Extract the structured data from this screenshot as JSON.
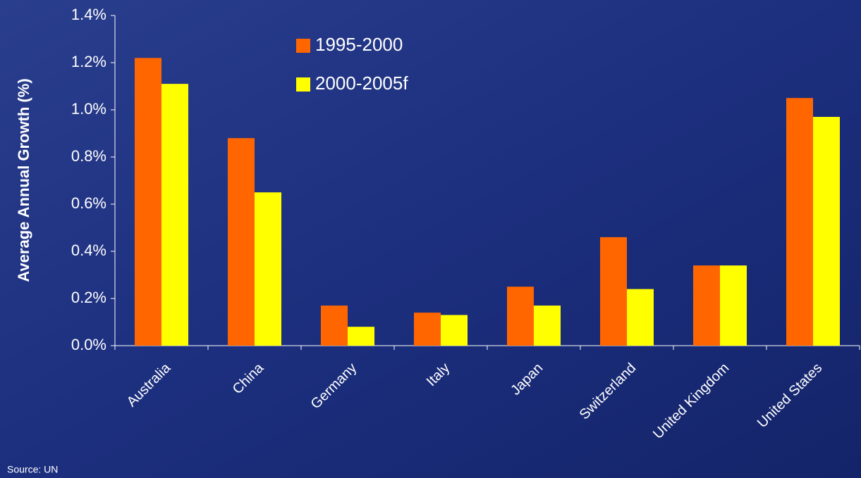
{
  "chart_data": {
    "type": "bar",
    "y_label": "Average Annual Growth (%)",
    "source": "Source: UN",
    "categories": [
      "Australia",
      "China",
      "Germany",
      "Italy",
      "Japan",
      "Switzerland",
      "United Kingdom",
      "United States"
    ],
    "series": [
      {
        "name": "1995-2000",
        "color": "#ff6600",
        "values": [
          1.22,
          0.88,
          0.17,
          0.14,
          0.25,
          0.46,
          0.34,
          1.05
        ]
      },
      {
        "name": "2000-2005f",
        "color": "#ffff00",
        "values": [
          1.11,
          0.65,
          0.08,
          0.13,
          0.17,
          0.24,
          0.34,
          0.97
        ]
      }
    ],
    "ylim": [
      0,
      1.4
    ],
    "yticks": [
      {
        "value": 0,
        "label": "0.0%"
      },
      {
        "value": 0.2,
        "label": "0.2%"
      },
      {
        "value": 0.4,
        "label": "0.4%"
      },
      {
        "value": 0.6,
        "label": "0.6%"
      },
      {
        "value": 0.8,
        "label": "0.8%"
      },
      {
        "value": 1.0,
        "label": "1.0%"
      },
      {
        "value": 1.2,
        "label": "1.2%"
      },
      {
        "value": 1.4,
        "label": "1.4%"
      }
    ],
    "grid": false
  }
}
